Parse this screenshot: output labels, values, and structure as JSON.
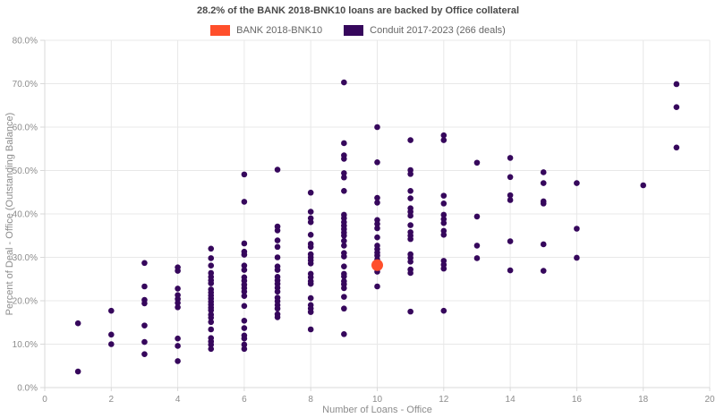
{
  "title": "28.2% of the BANK 2018-BNK10 loans are backed by Office collateral",
  "legend": {
    "items": [
      {
        "label": "BANK 2018-BNK10",
        "color": "#ff4f2b"
      },
      {
        "label": "Conduit 2017-2023 (266 deals)",
        "color": "#36075c"
      }
    ]
  },
  "colors": {
    "bank": "#ff4f2b",
    "conduit": "#36075c",
    "grid": "#e8e8e8",
    "axis_line": "#d9d9d9",
    "tick_text": "#8c8c8c",
    "axis_title_text": "#8c8c8c",
    "title_text": "#4a4a4a"
  },
  "chart_data": {
    "type": "scatter",
    "title": "28.2% of the BANK 2018-BNK10 loans are backed by Office collateral",
    "xlabel": "Number of Loans - Office",
    "ylabel": "Percent of Deal - Office (Outstanding Balance)",
    "xlim": [
      0,
      20
    ],
    "ylim": [
      0,
      80
    ],
    "grid": true,
    "legend_position": "top-center",
    "x_ticks": [
      "0",
      "2",
      "4",
      "6",
      "8",
      "10",
      "12",
      "14",
      "16",
      "18",
      "20"
    ],
    "x_tick_values": [
      0,
      2,
      4,
      6,
      8,
      10,
      12,
      14,
      16,
      18,
      20
    ],
    "y_ticks": [
      "0.0%",
      "10.0%",
      "20.0%",
      "30.0%",
      "40.0%",
      "50.0%",
      "60.0%",
      "70.0%",
      "80.0%"
    ],
    "y_tick_values": [
      0,
      10,
      20,
      30,
      40,
      50,
      60,
      70,
      80
    ],
    "series": [
      {
        "name": "Conduit 2017-2023 (266 deals)",
        "color": "#36075c",
        "marker_radius": 3.3,
        "columns": [
          {
            "x": 1,
            "ys": [
              14.8,
              3.7
            ]
          },
          {
            "x": 2,
            "ys": [
              17.7,
              12.2,
              10.0
            ]
          },
          {
            "x": 3,
            "ys": [
              28.7,
              23.3,
              20.2,
              19.4,
              14.3,
              10.5,
              7.7
            ]
          },
          {
            "x": 4,
            "ys": [
              27.7,
              26.9,
              22.8,
              21.3,
              20.4,
              19.5,
              18.5,
              11.3,
              9.6,
              6.1
            ]
          },
          {
            "x": 5,
            "ys": [
              32.0,
              29.8,
              28.1,
              26.4,
              25.5,
              24.7,
              24.0,
              22.6,
              21.9,
              21.2,
              20.5,
              19.8,
              19.1,
              18.4,
              17.8,
              16.8,
              16.1,
              15.1,
              13.4,
              11.4,
              10.6,
              9.9,
              8.9
            ]
          },
          {
            "x": 6,
            "ys": [
              49.1,
              42.8,
              33.2,
              31.3,
              30.6,
              28.1,
              27.1,
              25.4,
              24.6,
              23.7,
              22.9,
              22.1,
              21.1,
              18.8,
              15.4,
              13.7,
              12.0,
              11.3,
              9.9,
              8.9
            ]
          },
          {
            "x": 7,
            "ys": [
              50.2,
              37.1,
              36.2,
              33.9,
              32.4,
              30.0,
              27.9,
              27.1,
              25.5,
              24.7,
              23.9,
              23.0,
              22.1,
              20.7,
              19.9,
              19.0,
              18.2,
              16.9,
              16.2
            ]
          },
          {
            "x": 8,
            "ys": [
              44.9,
              40.5,
              39.0,
              38.1,
              35.2,
              33.1,
              32.4,
              30.7,
              30.0,
              29.3,
              28.6,
              26.2,
              25.4,
              24.5,
              23.9,
              20.6,
              19.0,
              18.2,
              17.4,
              13.4
            ]
          },
          {
            "x": 9,
            "ys": [
              70.3,
              56.3,
              53.5,
              52.7,
              49.4,
              48.4,
              45.3,
              39.8,
              39.0,
              38.1,
              37.3,
              36.5,
              35.7,
              35.0,
              33.8,
              32.7,
              31.0,
              30.2,
              27.9,
              26.2,
              25.6,
              24.5,
              23.8,
              22.9,
              20.9,
              18.2,
              12.3
            ]
          },
          {
            "x": 10,
            "ys": [
              60.0,
              51.9,
              43.7,
              42.6,
              38.6,
              37.7,
              36.7,
              34.6,
              32.7,
              31.9,
              31.1,
              30.4,
              29.5,
              26.7,
              23.3
            ]
          },
          {
            "x": 11,
            "ys": [
              57.0,
              50.1,
              49.2,
              45.3,
              43.6,
              41.3,
              40.5,
              39.6,
              37.4,
              35.8,
              35.0,
              34.2,
              30.7,
              29.9,
              29.0,
              27.2,
              26.4,
              17.5
            ]
          },
          {
            "x": 12,
            "ys": [
              58.1,
              57.0,
              44.2,
              42.4,
              39.8,
              38.8,
              37.9,
              36.1,
              35.2,
              29.2,
              28.3,
              27.4,
              17.7
            ]
          },
          {
            "x": 13,
            "ys": [
              51.8,
              39.4,
              32.7,
              29.8
            ]
          },
          {
            "x": 14,
            "ys": [
              52.9,
              48.5,
              44.3,
              43.2,
              33.7,
              27.0
            ]
          },
          {
            "x": 15,
            "ys": [
              49.6,
              47.1,
              42.9,
              42.4,
              33.0,
              26.9
            ]
          },
          {
            "x": 16,
            "ys": [
              47.1,
              36.6,
              29.9
            ]
          },
          {
            "x": 18,
            "ys": [
              46.6
            ]
          },
          {
            "x": 19,
            "ys": [
              69.9,
              64.6,
              55.3
            ]
          }
        ]
      },
      {
        "name": "BANK 2018-BNK10",
        "color": "#ff4f2b",
        "marker_radius": 6.5,
        "points": [
          {
            "x": 10,
            "y": 28.2
          }
        ]
      }
    ]
  }
}
